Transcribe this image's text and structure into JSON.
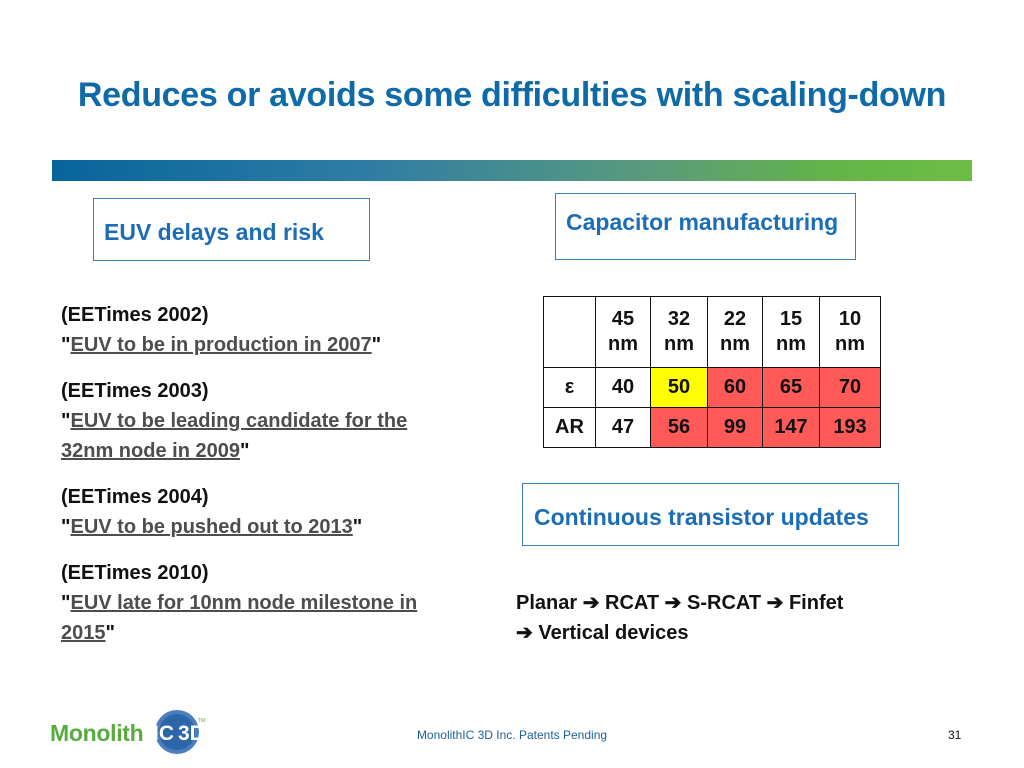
{
  "title": "Reduces or avoids some difficulties with scaling-down",
  "boxes": {
    "euv": "EUV delays and risk",
    "capacitor": "Capacitor manufacturing",
    "transistor": "Continuous transistor updates"
  },
  "quotes": [
    {
      "source": "(EETimes 2002)",
      "link": "EUV to be in production in 2007"
    },
    {
      "source": "(EETimes 2003)",
      "link": "EUV to be leading candidate for the 32nm node in 2009"
    },
    {
      "source": "(EETimes 2004)",
      "link": "EUV to be pushed out to 2013"
    },
    {
      "source": "(EETimes 2010)",
      "link": "EUV late for 10nm node milestone in 2015"
    }
  ],
  "table": {
    "headers": [
      {
        "num": "45",
        "unit": "nm"
      },
      {
        "num": "32",
        "unit": "nm"
      },
      {
        "num": "22",
        "unit": "nm"
      },
      {
        "num": "15",
        "unit": "nm"
      },
      {
        "num": "10",
        "unit": "nm"
      }
    ],
    "rows": [
      {
        "label": "ε",
        "values": [
          "40",
          "50",
          "60",
          "65",
          "70"
        ]
      },
      {
        "label": "AR",
        "values": [
          "47",
          "56",
          "99",
          "147",
          "193"
        ]
      }
    ],
    "colors": {
      "yellow": "#ffff00",
      "red": "#ff5a57"
    }
  },
  "transistor_path": {
    "line1": [
      "Planar",
      "RCAT",
      "S-RCAT",
      "Finfet"
    ],
    "line2": "Vertical devices",
    "arrow": "➔"
  },
  "footer": "MonolithIC 3D Inc. Patents Pending",
  "page_number": "31",
  "logo": {
    "text": "Monolith",
    "badge": "3D",
    "tm": "TM"
  }
}
